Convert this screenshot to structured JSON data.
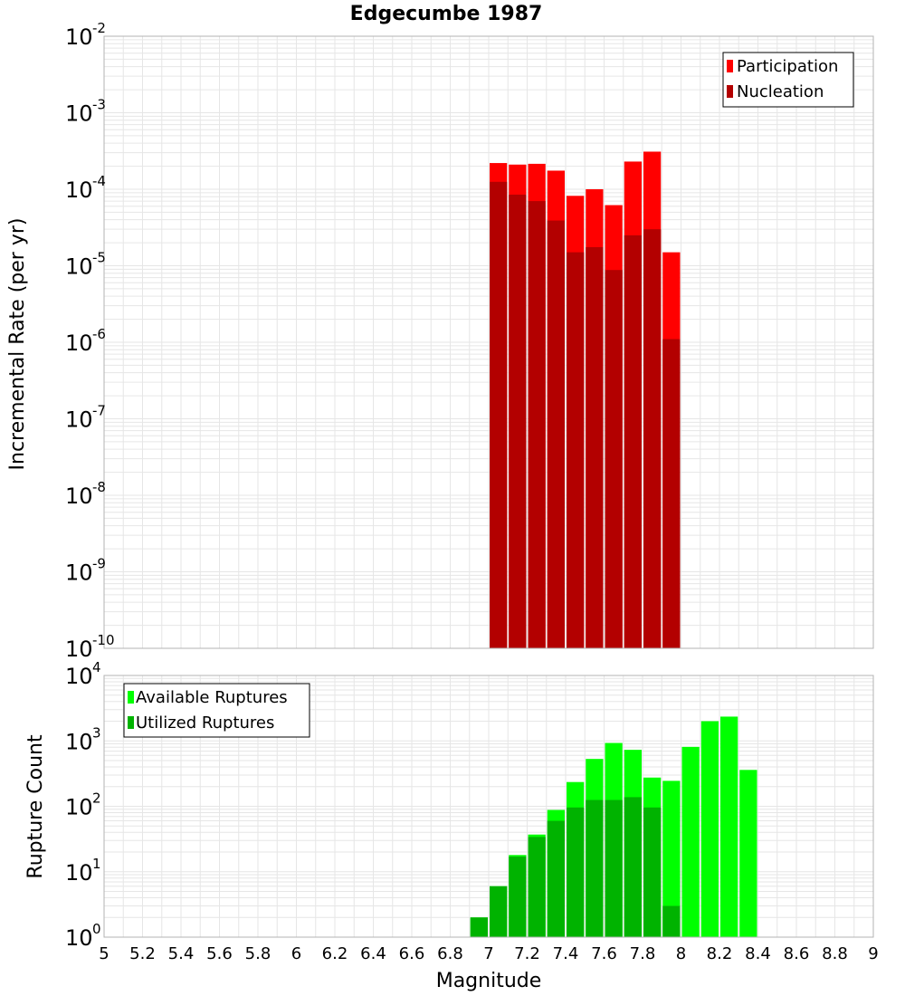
{
  "title": "Edgecumbe 1987",
  "colors": {
    "participation": "#ff0000",
    "nucleation": "#b30000",
    "available": "#00ff00",
    "utilized": "#00b300",
    "grid": "#e6e6e6",
    "frame": "#b3b3b3"
  },
  "chart_data": [
    {
      "type": "bar",
      "ylabel": "Incremental Rate (per yr)",
      "yscale": "log",
      "ylim_exp": [
        -10,
        -2
      ],
      "xlim": [
        5,
        9
      ],
      "bin_width": 0.1,
      "grid": true,
      "legend_position": "top-right",
      "series": [
        {
          "name": "Participation",
          "x": [
            7.05,
            7.15,
            7.25,
            7.35,
            7.45,
            7.55,
            7.65,
            7.75,
            7.85,
            7.95
          ],
          "values": [
            0.00022,
            0.00021,
            0.000215,
            0.000175,
            8.2e-05,
            0.0001,
            6.2e-05,
            0.00023,
            0.00031,
            1.5e-05
          ]
        },
        {
          "name": "Nucleation",
          "x": [
            7.05,
            7.15,
            7.25,
            7.35,
            7.45,
            7.55,
            7.65,
            7.75,
            7.85,
            7.95
          ],
          "values": [
            0.000125,
            8.5e-05,
            7e-05,
            3.9e-05,
            1.5e-05,
            1.75e-05,
            8.8e-06,
            2.5e-05,
            3e-05,
            1.1e-06
          ]
        }
      ]
    },
    {
      "type": "bar",
      "ylabel": "Rupture Count",
      "xlabel": "Magnitude",
      "yscale": "log",
      "ylim_exp": [
        0,
        4
      ],
      "xlim": [
        5,
        9
      ],
      "bin_width": 0.1,
      "grid": true,
      "legend_position": "top-left",
      "xticks": [
        "5",
        "5.2",
        "5.4",
        "5.6",
        "5.8",
        "6",
        "6.2",
        "6.4",
        "6.6",
        "6.8",
        "7",
        "7.2",
        "7.4",
        "7.6",
        "7.8",
        "8",
        "8.2",
        "8.4",
        "8.6",
        "8.8",
        "9"
      ],
      "series": [
        {
          "name": "Available Ruptures",
          "x": [
            6.75,
            6.95,
            7.05,
            7.15,
            7.25,
            7.35,
            7.45,
            7.55,
            7.65,
            7.75,
            7.85,
            7.95,
            8.05,
            8.15,
            8.25,
            8.35
          ],
          "values": [
            1,
            2,
            6,
            18,
            37,
            88,
            235,
            530,
            930,
            730,
            275,
            245,
            810,
            2000,
            2350,
            360
          ]
        },
        {
          "name": "Utilized Ruptures",
          "x": [
            6.95,
            7.05,
            7.15,
            7.25,
            7.35,
            7.45,
            7.55,
            7.65,
            7.75,
            7.85,
            7.95
          ],
          "values": [
            2,
            6,
            17,
            34,
            60,
            96,
            125,
            125,
            138,
            96,
            3
          ]
        }
      ]
    }
  ]
}
